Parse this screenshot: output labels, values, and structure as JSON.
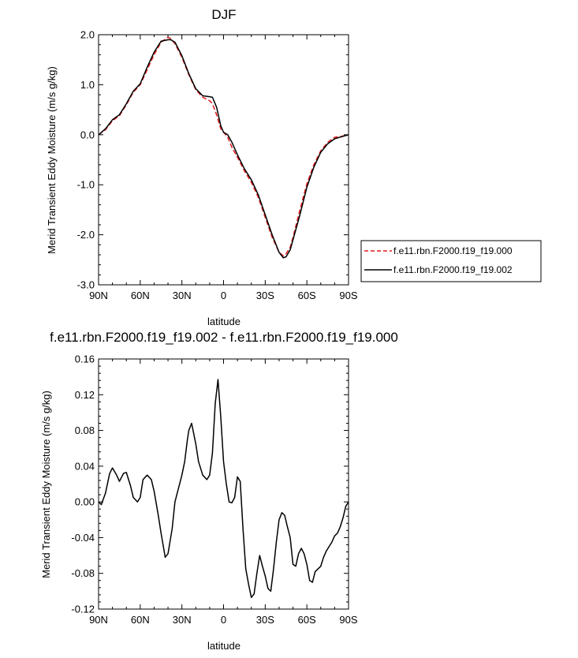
{
  "chart_data": [
    {
      "type": "line",
      "title": "DJF",
      "xlabel": "latitude",
      "ylabel": "Merid Transient Eddy Moisture (m/s g/kg)",
      "xlim": [
        90,
        -90
      ],
      "ylim": [
        -3.0,
        2.0
      ],
      "xticks": [
        90,
        60,
        30,
        0,
        -30,
        -60,
        -90
      ],
      "xtick_labels": [
        "90N",
        "60N",
        "30N",
        "0",
        "30S",
        "60S",
        "90S"
      ],
      "yticks": [
        2.0,
        1.0,
        0.0,
        -1.0,
        -2.0,
        -3.0
      ],
      "ytick_labels": [
        "2.0",
        "1.0",
        "0.0",
        "-1.0",
        "-2.0",
        "-3.0"
      ],
      "legend_position": "right, outside plot",
      "colors": {
        "series0": "#e41a1c",
        "series1": "#000000"
      },
      "series": [
        {
          "name": "f.e11.rbn.F2000.f19_f19.000",
          "style": "dashed",
          "x": [
            90,
            85,
            80,
            75,
            70,
            65,
            60,
            55,
            50,
            45,
            40,
            38,
            35,
            30,
            25,
            20,
            15,
            10,
            8,
            5,
            2,
            0,
            -3,
            -6,
            -10,
            -15,
            -20,
            -25,
            -30,
            -35,
            -40,
            -43,
            -45,
            -48,
            -50,
            -55,
            -60,
            -65,
            -70,
            -75,
            -80,
            -85,
            -90
          ],
          "y": [
            0.0,
            0.1,
            0.28,
            0.38,
            0.6,
            0.85,
            1.0,
            1.3,
            1.6,
            1.85,
            1.95,
            1.92,
            1.82,
            1.55,
            1.2,
            0.9,
            0.75,
            0.68,
            0.62,
            0.4,
            0.12,
            0.05,
            -0.05,
            -0.25,
            -0.45,
            -0.72,
            -0.95,
            -1.25,
            -1.65,
            -2.05,
            -2.35,
            -2.42,
            -2.38,
            -2.25,
            -2.05,
            -1.5,
            -0.98,
            -0.6,
            -0.32,
            -0.15,
            -0.05,
            -0.03,
            0.0
          ]
        },
        {
          "name": "f.e11.rbn.F2000.f19_f19.002",
          "style": "solid",
          "x": [
            90,
            85,
            80,
            75,
            70,
            65,
            60,
            55,
            50,
            45,
            40,
            38,
            35,
            30,
            25,
            20,
            15,
            10,
            8,
            5,
            2,
            0,
            -3,
            -6,
            -10,
            -15,
            -20,
            -25,
            -30,
            -35,
            -40,
            -43,
            -45,
            -48,
            -50,
            -55,
            -60,
            -65,
            -70,
            -75,
            -80,
            -85,
            -90
          ],
          "y": [
            0.0,
            0.12,
            0.3,
            0.4,
            0.62,
            0.87,
            1.02,
            1.35,
            1.65,
            1.87,
            1.9,
            1.9,
            1.85,
            1.58,
            1.22,
            0.92,
            0.78,
            0.76,
            0.75,
            0.55,
            0.18,
            0.05,
            0.0,
            -0.15,
            -0.4,
            -0.68,
            -0.9,
            -1.2,
            -1.6,
            -2.0,
            -2.35,
            -2.46,
            -2.44,
            -2.3,
            -2.1,
            -1.6,
            -1.05,
            -0.65,
            -0.35,
            -0.18,
            -0.08,
            -0.04,
            0.0
          ]
        }
      ]
    },
    {
      "type": "line",
      "title": "f.e11.rbn.F2000.f19_f19.002 - f.e11.rbn.F2000.f19_f19.000",
      "xlabel": "latitude",
      "ylabel": "Merid Transient Eddy Moisture (m/s g/kg)",
      "xlim": [
        90,
        -90
      ],
      "ylim": [
        -0.12,
        0.16
      ],
      "xticks": [
        90,
        60,
        30,
        0,
        -30,
        -60,
        -90
      ],
      "xtick_labels": [
        "90N",
        "60N",
        "30N",
        "0",
        "30S",
        "60S",
        "90S"
      ],
      "yticks": [
        0.16,
        0.12,
        0.08,
        0.04,
        0.0,
        -0.04,
        -0.08,
        -0.12
      ],
      "ytick_labels": [
        "0.16",
        "0.12",
        "0.08",
        "0.04",
        "0.00",
        "-0.04",
        "-0.08",
        "-0.12"
      ],
      "colors": {
        "series0": "#000000"
      },
      "series": [
        {
          "x": [
            90,
            88,
            85,
            82,
            80,
            77,
            75,
            72,
            70,
            67,
            65,
            62,
            60,
            58,
            55,
            52,
            50,
            47,
            45,
            42,
            40,
            37,
            35,
            32,
            30,
            28,
            26,
            25,
            23,
            20,
            18,
            15,
            12,
            10,
            8,
            6,
            4,
            2,
            0,
            -2,
            -4,
            -6,
            -8,
            -10,
            -12,
            -14,
            -16,
            -18,
            -20,
            -22,
            -24,
            -26,
            -28,
            -30,
            -32,
            -34,
            -36,
            -38,
            -40,
            -42,
            -44,
            -46,
            -48,
            -50,
            -52,
            -54,
            -56,
            -58,
            -60,
            -62,
            -64,
            -66,
            -68,
            -70,
            -72,
            -74,
            -76,
            -78,
            -80,
            -82,
            -84,
            -86,
            -88,
            -90
          ],
          "y": [
            0.0,
            -0.003,
            0.01,
            0.032,
            0.038,
            0.03,
            0.023,
            0.032,
            0.033,
            0.018,
            0.005,
            0.0,
            0.005,
            0.025,
            0.03,
            0.025,
            0.012,
            -0.015,
            -0.035,
            -0.062,
            -0.058,
            -0.03,
            0.0,
            0.018,
            0.03,
            0.045,
            0.07,
            0.08,
            0.088,
            0.065,
            0.045,
            0.03,
            0.025,
            0.03,
            0.055,
            0.11,
            0.137,
            0.095,
            0.045,
            0.02,
            0.0,
            -0.001,
            0.005,
            0.028,
            0.023,
            -0.03,
            -0.075,
            -0.092,
            -0.107,
            -0.103,
            -0.08,
            -0.06,
            -0.072,
            -0.083,
            -0.097,
            -0.1,
            -0.075,
            -0.045,
            -0.02,
            -0.012,
            -0.015,
            -0.028,
            -0.04,
            -0.07,
            -0.072,
            -0.058,
            -0.052,
            -0.058,
            -0.07,
            -0.088,
            -0.09,
            -0.078,
            -0.075,
            -0.072,
            -0.062,
            -0.055,
            -0.05,
            -0.045,
            -0.038,
            -0.035,
            -0.028,
            -0.018,
            -0.005,
            0.0
          ]
        }
      ]
    }
  ]
}
